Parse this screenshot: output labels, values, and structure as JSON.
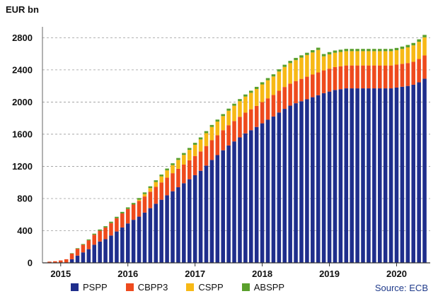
{
  "chart_data": {
    "type": "bar",
    "stacked": true,
    "ylabel": "EUR bn",
    "source": "Source: ECB",
    "ylim": [
      0,
      2900
    ],
    "yticks": [
      "0",
      "400",
      "800",
      "1200",
      "1600",
      "2000",
      "2400",
      "2800"
    ],
    "xticks": [
      "2015",
      "2016",
      "2017",
      "2018",
      "2019",
      "2020"
    ],
    "xtick_index": [
      2,
      14,
      26,
      38,
      50,
      62
    ],
    "grid": true,
    "legend_position": "bottom",
    "colors": {
      "PSPP": "#1f2e8c",
      "CBPP3": "#ee4a1d",
      "CSPP": "#f7b916",
      "ABSPP": "#5aa02c"
    },
    "series": [
      {
        "name": "PSPP",
        "values": [
          0,
          0,
          0,
          0,
          45,
          90,
          130,
          170,
          225,
          265,
          295,
          340,
          390,
          440,
          490,
          535,
          575,
          625,
          680,
          735,
          785,
          840,
          890,
          940,
          990,
          1040,
          1090,
          1145,
          1210,
          1280,
          1340,
          1400,
          1460,
          1510,
          1560,
          1610,
          1650,
          1690,
          1735,
          1780,
          1820,
          1870,
          1915,
          1955,
          1985,
          2010,
          2035,
          2060,
          2085,
          2110,
          2130,
          2150,
          2160,
          2170,
          2170,
          2170,
          2170,
          2170,
          2170,
          2170,
          2170,
          2170,
          2180,
          2190,
          2200,
          2215,
          2245,
          2290
        ]
      },
      {
        "name": "CBPP3",
        "values": [
          15,
          20,
          30,
          45,
          70,
          85,
          95,
          110,
          125,
          135,
          145,
          155,
          165,
          175,
          180,
          190,
          195,
          200,
          205,
          210,
          215,
          220,
          225,
          230,
          232,
          235,
          238,
          240,
          243,
          245,
          247,
          250,
          252,
          254,
          256,
          258,
          260,
          262,
          264,
          266,
          268,
          270,
          272,
          274,
          276,
          278,
          280,
          282,
          283,
          284,
          285,
          285,
          285,
          285,
          285,
          285,
          285,
          285,
          285,
          285,
          285,
          285,
          285,
          285,
          285,
          285,
          290,
          290
        ]
      },
      {
        "name": "CSPP",
        "values": [
          0,
          0,
          0,
          0,
          0,
          0,
          0,
          0,
          0,
          0,
          0,
          0,
          0,
          0,
          0,
          0,
          15,
          30,
          45,
          60,
          75,
          90,
          100,
          110,
          120,
          130,
          140,
          150,
          160,
          165,
          170,
          175,
          180,
          190,
          195,
          200,
          205,
          210,
          220,
          225,
          230,
          240,
          250,
          255,
          260,
          265,
          270,
          275,
          280,
          175,
          178,
          178,
          178,
          178,
          178,
          178,
          178,
          178,
          178,
          178,
          178,
          178,
          180,
          185,
          195,
          205,
          215,
          225
        ]
      },
      {
        "name": "ABSPP",
        "values": [
          0,
          0,
          0,
          0,
          5,
          7,
          9,
          11,
          13,
          15,
          16,
          17,
          18,
          19,
          20,
          20,
          21,
          21,
          22,
          22,
          23,
          23,
          23,
          24,
          24,
          24,
          25,
          25,
          25,
          25,
          25,
          25,
          26,
          26,
          26,
          26,
          26,
          27,
          27,
          27,
          27,
          27,
          27,
          28,
          28,
          28,
          28,
          28,
          28,
          28,
          28,
          28,
          28,
          28,
          28,
          28,
          28,
          28,
          28,
          28,
          28,
          28,
          28,
          30,
          30,
          30,
          30,
          30
        ]
      }
    ]
  }
}
